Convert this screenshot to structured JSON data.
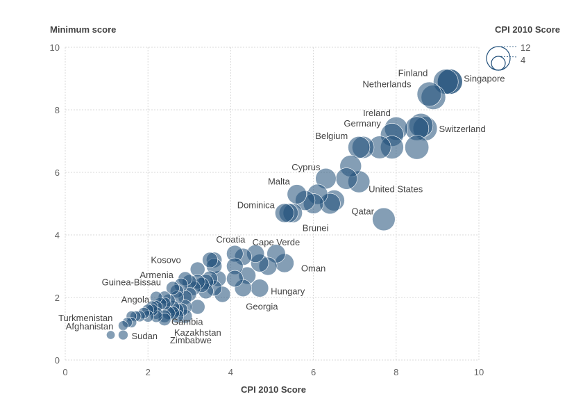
{
  "chart_data": {
    "type": "scatter",
    "title": "",
    "xlabel": "CPI 2010 Score",
    "ylabel": "Minimum score",
    "xlim": [
      0,
      10
    ],
    "ylim": [
      0,
      10
    ],
    "x_ticks": [
      0,
      2,
      4,
      6,
      8,
      10
    ],
    "y_ticks": [
      0,
      2,
      4,
      6,
      8,
      10
    ],
    "grid": true,
    "size_encoding": "CPI 2010 Score",
    "legend": {
      "title": "CPI 2010 Score",
      "placement": "top-right",
      "sizes": [
        12,
        4
      ],
      "labels": [
        "12",
        "4"
      ]
    },
    "color": "#1f4e79",
    "points": [
      {
        "x": 9.3,
        "y": 8.9,
        "label": "Singapore"
      },
      {
        "x": 9.2,
        "y": 8.9,
        "label": "Finland"
      },
      {
        "x": 9.3,
        "y": 8.9,
        "label": ""
      },
      {
        "x": 8.8,
        "y": 8.5,
        "label": "Netherlands"
      },
      {
        "x": 8.9,
        "y": 8.4,
        "label": ""
      },
      {
        "x": 8.0,
        "y": 7.4,
        "label": "Ireland"
      },
      {
        "x": 7.9,
        "y": 7.2,
        "label": "Germany"
      },
      {
        "x": 8.7,
        "y": 7.4,
        "label": "Switzerland"
      },
      {
        "x": 8.5,
        "y": 7.4,
        "label": ""
      },
      {
        "x": 8.6,
        "y": 7.5,
        "label": ""
      },
      {
        "x": 7.1,
        "y": 6.8,
        "label": "Belgium"
      },
      {
        "x": 7.6,
        "y": 6.8,
        "label": ""
      },
      {
        "x": 7.9,
        "y": 6.8,
        "label": ""
      },
      {
        "x": 8.5,
        "y": 6.8,
        "label": ""
      },
      {
        "x": 7.2,
        "y": 6.8,
        "label": ""
      },
      {
        "x": 6.9,
        "y": 6.2,
        "label": ""
      },
      {
        "x": 6.3,
        "y": 5.8,
        "label": "Cyprus"
      },
      {
        "x": 6.8,
        "y": 5.8,
        "label": ""
      },
      {
        "x": 7.1,
        "y": 5.7,
        "label": "United States"
      },
      {
        "x": 5.6,
        "y": 5.3,
        "label": "Malta"
      },
      {
        "x": 6.1,
        "y": 5.3,
        "label": ""
      },
      {
        "x": 5.8,
        "y": 5.1,
        "label": ""
      },
      {
        "x": 6.0,
        "y": 5.0,
        "label": ""
      },
      {
        "x": 6.4,
        "y": 5.0,
        "label": ""
      },
      {
        "x": 6.5,
        "y": 5.1,
        "label": ""
      },
      {
        "x": 7.7,
        "y": 4.5,
        "label": "Qatar"
      },
      {
        "x": 5.3,
        "y": 4.7,
        "label": "Dominica"
      },
      {
        "x": 5.5,
        "y": 4.7,
        "label": "Brunei"
      },
      {
        "x": 5.4,
        "y": 4.7,
        "label": ""
      },
      {
        "x": 5.1,
        "y": 3.4,
        "label": "Cape Verde"
      },
      {
        "x": 4.1,
        "y": 3.4,
        "label": "Croatia"
      },
      {
        "x": 4.6,
        "y": 3.4,
        "label": ""
      },
      {
        "x": 4.3,
        "y": 3.3,
        "label": ""
      },
      {
        "x": 5.3,
        "y": 3.1,
        "label": "Oman"
      },
      {
        "x": 4.7,
        "y": 3.1,
        "label": ""
      },
      {
        "x": 4.9,
        "y": 3.0,
        "label": ""
      },
      {
        "x": 4.1,
        "y": 3.0,
        "label": ""
      },
      {
        "x": 4.4,
        "y": 2.7,
        "label": ""
      },
      {
        "x": 4.7,
        "y": 2.3,
        "label": "Hungary"
      },
      {
        "x": 4.3,
        "y": 2.3,
        "label": "Georgia"
      },
      {
        "x": 4.1,
        "y": 2.6,
        "label": ""
      },
      {
        "x": 3.6,
        "y": 3.2,
        "label": ""
      },
      {
        "x": 3.5,
        "y": 3.2,
        "label": ""
      },
      {
        "x": 3.6,
        "y": 3.0,
        "label": ""
      },
      {
        "x": 3.5,
        "y": 2.6,
        "label": ""
      },
      {
        "x": 3.7,
        "y": 2.6,
        "label": ""
      },
      {
        "x": 3.4,
        "y": 2.5,
        "label": ""
      },
      {
        "x": 3.3,
        "y": 2.4,
        "label": ""
      },
      {
        "x": 3.8,
        "y": 2.1,
        "label": ""
      },
      {
        "x": 3.6,
        "y": 2.3,
        "label": ""
      },
      {
        "x": 3.2,
        "y": 2.9,
        "label": "Kosovo"
      },
      {
        "x": 2.9,
        "y": 2.6,
        "label": "Armenia"
      },
      {
        "x": 3.0,
        "y": 2.5,
        "label": ""
      },
      {
        "x": 3.1,
        "y": 2.3,
        "label": ""
      },
      {
        "x": 3.2,
        "y": 2.5,
        "label": ""
      },
      {
        "x": 3.4,
        "y": 2.2,
        "label": ""
      },
      {
        "x": 2.8,
        "y": 2.4,
        "label": ""
      },
      {
        "x": 2.7,
        "y": 2.2,
        "label": ""
      },
      {
        "x": 2.6,
        "y": 2.3,
        "label": "Guinea-Bissau"
      },
      {
        "x": 2.9,
        "y": 2.0,
        "label": ""
      },
      {
        "x": 3.0,
        "y": 2.1,
        "label": ""
      },
      {
        "x": 2.7,
        "y": 2.0,
        "label": ""
      },
      {
        "x": 2.5,
        "y": 1.9,
        "label": ""
      },
      {
        "x": 2.4,
        "y": 2.0,
        "label": ""
      },
      {
        "x": 2.3,
        "y": 1.8,
        "label": ""
      },
      {
        "x": 2.2,
        "y": 2.0,
        "label": ""
      },
      {
        "x": 2.4,
        "y": 1.8,
        "label": ""
      },
      {
        "x": 2.2,
        "y": 1.7,
        "label": "Angola"
      },
      {
        "x": 2.1,
        "y": 1.7,
        "label": ""
      },
      {
        "x": 2.0,
        "y": 1.6,
        "label": ""
      },
      {
        "x": 2.1,
        "y": 1.6,
        "label": ""
      },
      {
        "x": 2.2,
        "y": 1.5,
        "label": ""
      },
      {
        "x": 2.6,
        "y": 1.7,
        "label": ""
      },
      {
        "x": 2.7,
        "y": 1.6,
        "label": ""
      },
      {
        "x": 2.9,
        "y": 1.7,
        "label": ""
      },
      {
        "x": 3.2,
        "y": 1.7,
        "label": ""
      },
      {
        "x": 2.5,
        "y": 1.5,
        "label": ""
      },
      {
        "x": 2.4,
        "y": 1.4,
        "label": ""
      },
      {
        "x": 2.8,
        "y": 1.6,
        "label": ""
      },
      {
        "x": 1.9,
        "y": 1.5,
        "label": ""
      },
      {
        "x": 2.0,
        "y": 1.4,
        "label": ""
      },
      {
        "x": 1.6,
        "y": 1.4,
        "label": "Turkmenistan"
      },
      {
        "x": 1.7,
        "y": 1.4,
        "label": ""
      },
      {
        "x": 1.8,
        "y": 1.4,
        "label": ""
      },
      {
        "x": 2.2,
        "y": 1.4,
        "label": ""
      },
      {
        "x": 2.7,
        "y": 1.4,
        "label": "Zimbabwe"
      },
      {
        "x": 2.9,
        "y": 1.4,
        "label": "Kazakhstan"
      },
      {
        "x": 2.6,
        "y": 1.5,
        "label": "Gambia"
      },
      {
        "x": 1.5,
        "y": 1.2,
        "label": "Afghanistan"
      },
      {
        "x": 1.6,
        "y": 1.2,
        "label": ""
      },
      {
        "x": 1.4,
        "y": 1.1,
        "label": ""
      },
      {
        "x": 2.4,
        "y": 1.3,
        "label": ""
      },
      {
        "x": 1.1,
        "y": 0.8,
        "label": ""
      },
      {
        "x": 1.4,
        "y": 0.8,
        "label": "Sudan"
      }
    ]
  }
}
